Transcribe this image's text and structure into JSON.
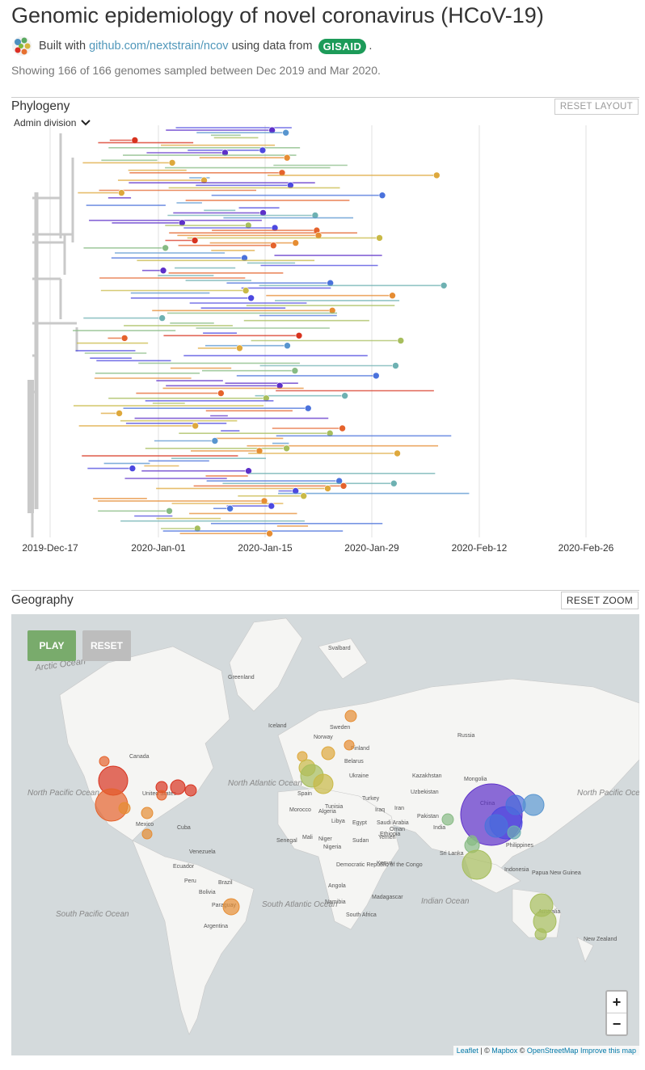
{
  "header": {
    "title": "Genomic epidemiology of novel coronavirus (HCoV-19)",
    "built_with": "Built with",
    "repo_link": "github.com/nextstrain/ncov",
    "using_data": "using data from",
    "gisaid": "GISAID",
    "period": ".",
    "subtitle": "Showing 166 of 166 genomes sampled between Dec 2019 and Mar 2020."
  },
  "phylogeny": {
    "heading": "Phylogeny",
    "reset_label": "RESET LAYOUT",
    "color_by": "Admin division",
    "axis_ticks": [
      "2019-Dec-17",
      "2020-Jan-01",
      "2020-Jan-15",
      "2020-Jan-29",
      "2020-Feb-12",
      "2020-Feb-26"
    ]
  },
  "geography": {
    "heading": "Geography",
    "reset_label": "RESET ZOOM",
    "play_label": "PLAY",
    "reset_anim_label": "RESET",
    "zoom_in": "+",
    "zoom_out": "−",
    "attribution": {
      "leaflet": "Leaflet",
      "sep1": " | © ",
      "mapbox": "Mapbox",
      "sep2": " © ",
      "osm": "OpenStreetMap",
      "improve": "Improve this map"
    },
    "ocean_labels": [
      "Arctic Ocean",
      "North Pacific Ocean",
      "North Atlantic Ocean",
      "South Atlantic Ocean",
      "South Pacific Ocean",
      "Indian Ocean",
      "North Pacific Ocean"
    ],
    "place_labels": [
      "Svalbard",
      "Greenland",
      "Iceland",
      "Norway",
      "Sweden",
      "Finland",
      "Russia",
      "Canada",
      "United States",
      "Mexico",
      "Cuba",
      "Venezuela",
      "Ecuador",
      "Peru",
      "Brazil",
      "Bolivia",
      "Paraguay",
      "Argentina",
      "Spain",
      "Morocco",
      "Algeria",
      "Tunisia",
      "Libya",
      "Egypt",
      "Mali",
      "Niger",
      "Senegal",
      "Nigeria",
      "Sudan",
      "Ethiopia",
      "Kenya",
      "Democratic Republic of the Congo",
      "Angola",
      "Namibia",
      "South Africa",
      "Madagascar",
      "Turkey",
      "Iraq",
      "Iran",
      "Saudi Arabia",
      "Oman",
      "Yemen",
      "Ukraine",
      "Belarus",
      "Kazakhstan",
      "Uzbekistan",
      "Pakistan",
      "India",
      "Sri Lanka",
      "Mongolia",
      "China",
      "Philippines",
      "Indonesia",
      "Papua New Guinea",
      "Australia",
      "New Zealand"
    ]
  },
  "colors": {
    "accent_link": "#5097ba",
    "gisaid_green": "#1d9b59",
    "play_green": "#79ab6c",
    "branch_gray": "#c9c9c9"
  }
}
